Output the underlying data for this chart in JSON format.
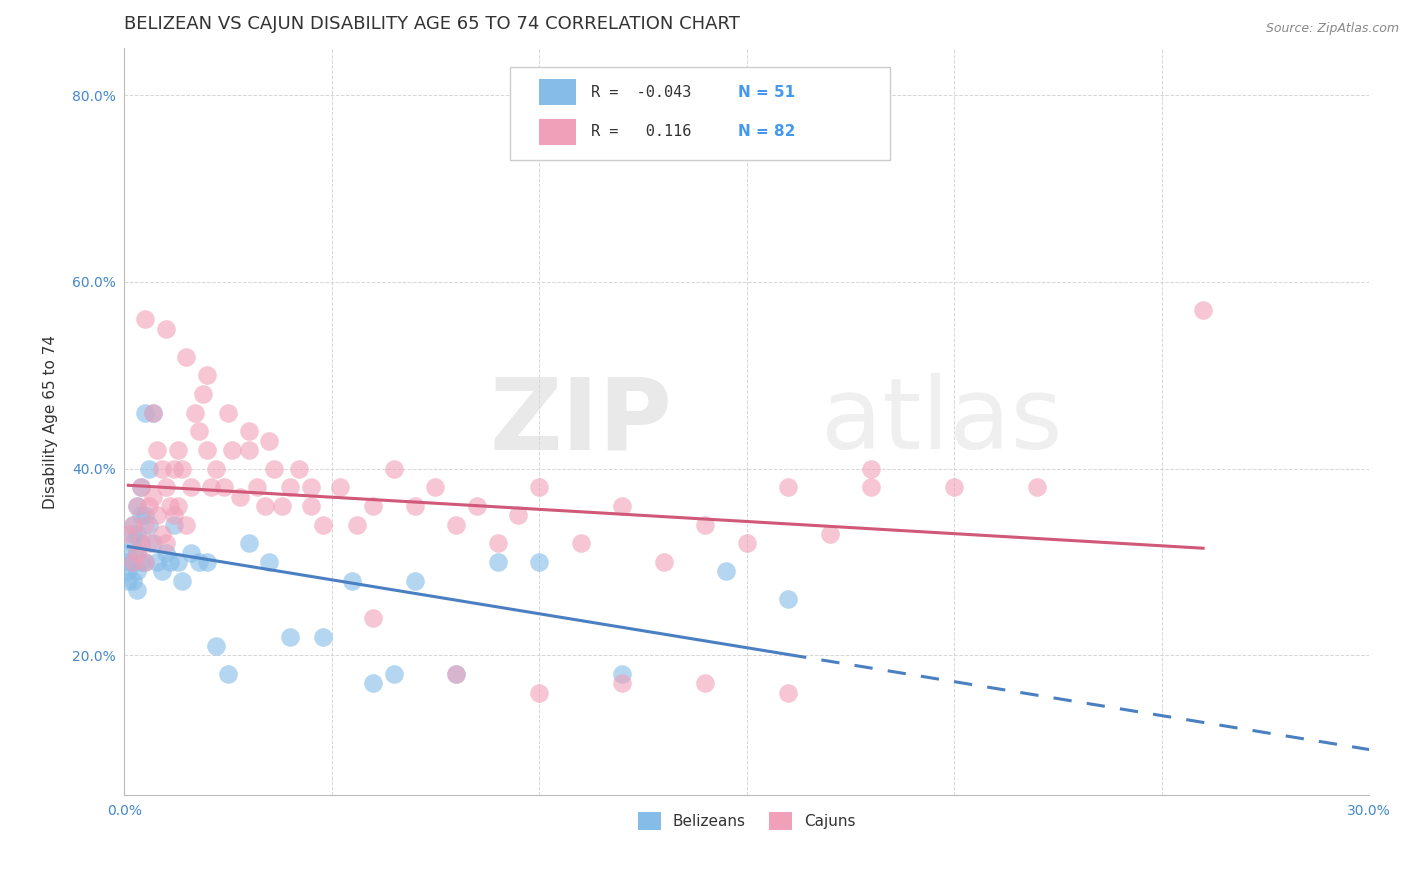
{
  "title": "BELIZEAN VS CAJUN DISABILITY AGE 65 TO 74 CORRELATION CHART",
  "source": "Source: ZipAtlas.com",
  "ylabel": "Disability Age 65 to 74",
  "xlabel_belizean": "Belizeans",
  "xlabel_cajun": "Cajuns",
  "x_min": 0.0,
  "x_max": 0.3,
  "y_min": 0.05,
  "y_max": 0.85,
  "x_ticks": [
    0.0,
    0.05,
    0.1,
    0.15,
    0.2,
    0.25,
    0.3
  ],
  "x_tick_labels": [
    "0.0%",
    "",
    "",
    "",
    "",
    "",
    "30.0%"
  ],
  "y_ticks": [
    0.2,
    0.4,
    0.6,
    0.8
  ],
  "y_tick_labels": [
    "20.0%",
    "40.0%",
    "60.0%",
    "80.0%"
  ],
  "color_belizean": "#85bce8",
  "color_cajun": "#f0a0b8",
  "trendline_belizean_color": "#4a7fc1",
  "trendline_cajun_color": "#d05878",
  "R_belizean": -0.043,
  "N_belizean": 51,
  "R_cajun": 0.116,
  "N_cajun": 82,
  "belizean_x": [
    0.001,
    0.001,
    0.001,
    0.001,
    0.002,
    0.002,
    0.002,
    0.002,
    0.002,
    0.003,
    0.003,
    0.003,
    0.003,
    0.003,
    0.004,
    0.004,
    0.004,
    0.004,
    0.005,
    0.005,
    0.005,
    0.006,
    0.006,
    0.007,
    0.007,
    0.008,
    0.009,
    0.01,
    0.011,
    0.012,
    0.013,
    0.014,
    0.016,
    0.018,
    0.02,
    0.022,
    0.025,
    0.03,
    0.035,
    0.04,
    0.048,
    0.055,
    0.06,
    0.065,
    0.07,
    0.08,
    0.09,
    0.1,
    0.12,
    0.145,
    0.16
  ],
  "belizean_y": [
    0.31,
    0.3,
    0.29,
    0.28,
    0.34,
    0.33,
    0.32,
    0.3,
    0.28,
    0.36,
    0.33,
    0.31,
    0.29,
    0.27,
    0.38,
    0.35,
    0.32,
    0.3,
    0.46,
    0.35,
    0.3,
    0.4,
    0.34,
    0.46,
    0.32,
    0.3,
    0.29,
    0.31,
    0.3,
    0.34,
    0.3,
    0.28,
    0.31,
    0.3,
    0.3,
    0.21,
    0.18,
    0.32,
    0.3,
    0.22,
    0.22,
    0.28,
    0.17,
    0.18,
    0.28,
    0.18,
    0.3,
    0.3,
    0.18,
    0.29,
    0.26
  ],
  "cajun_x": [
    0.001,
    0.002,
    0.002,
    0.003,
    0.003,
    0.004,
    0.004,
    0.005,
    0.005,
    0.006,
    0.006,
    0.007,
    0.007,
    0.008,
    0.008,
    0.009,
    0.009,
    0.01,
    0.01,
    0.011,
    0.012,
    0.012,
    0.013,
    0.013,
    0.014,
    0.015,
    0.016,
    0.017,
    0.018,
    0.019,
    0.02,
    0.021,
    0.022,
    0.024,
    0.026,
    0.028,
    0.03,
    0.032,
    0.034,
    0.036,
    0.038,
    0.04,
    0.042,
    0.045,
    0.048,
    0.052,
    0.056,
    0.06,
    0.065,
    0.07,
    0.075,
    0.08,
    0.085,
    0.09,
    0.095,
    0.1,
    0.11,
    0.12,
    0.13,
    0.14,
    0.15,
    0.16,
    0.17,
    0.18,
    0.005,
    0.01,
    0.015,
    0.02,
    0.025,
    0.03,
    0.035,
    0.045,
    0.06,
    0.08,
    0.1,
    0.12,
    0.14,
    0.16,
    0.18,
    0.2,
    0.22,
    0.26
  ],
  "cajun_y": [
    0.33,
    0.34,
    0.3,
    0.36,
    0.31,
    0.38,
    0.32,
    0.34,
    0.3,
    0.36,
    0.32,
    0.46,
    0.37,
    0.42,
    0.35,
    0.4,
    0.33,
    0.38,
    0.32,
    0.36,
    0.4,
    0.35,
    0.42,
    0.36,
    0.4,
    0.34,
    0.38,
    0.46,
    0.44,
    0.48,
    0.42,
    0.38,
    0.4,
    0.38,
    0.42,
    0.37,
    0.42,
    0.38,
    0.36,
    0.4,
    0.36,
    0.38,
    0.4,
    0.36,
    0.34,
    0.38,
    0.34,
    0.36,
    0.4,
    0.36,
    0.38,
    0.34,
    0.36,
    0.32,
    0.35,
    0.38,
    0.32,
    0.36,
    0.3,
    0.34,
    0.32,
    0.38,
    0.33,
    0.4,
    0.56,
    0.55,
    0.52,
    0.5,
    0.46,
    0.44,
    0.43,
    0.38,
    0.24,
    0.18,
    0.16,
    0.17,
    0.17,
    0.16,
    0.38,
    0.38,
    0.38,
    0.57
  ],
  "watermark_zip": "ZIP",
  "watermark_atlas": "atlas",
  "background_color": "#ffffff",
  "grid_color": "#cccccc",
  "title_fontsize": 13,
  "axis_label_fontsize": 11,
  "tick_fontsize": 10,
  "legend_fontsize": 11
}
